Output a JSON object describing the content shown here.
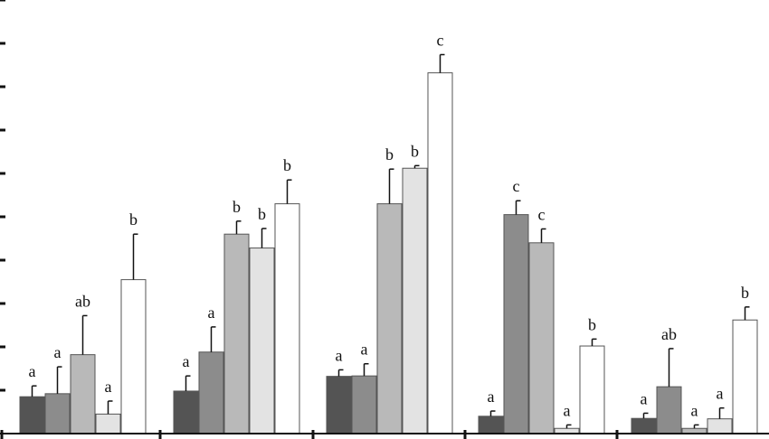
{
  "chart_data": {
    "type": "bar",
    "title": "",
    "xlabel": "",
    "ylabel": "",
    "ylim": [
      0,
      10
    ],
    "grid": false,
    "legend": "none",
    "groups": [
      {
        "bars": [
          {
            "value": 0.85,
            "error": 0.25,
            "letter": "a",
            "color": "#545454"
          },
          {
            "value": 0.92,
            "error": 0.62,
            "letter": "a",
            "color": "#8c8c8c"
          },
          {
            "value": 1.82,
            "error": 0.9,
            "letter": "ab",
            "color": "#b9b9b9"
          },
          {
            "value": 0.45,
            "error": 0.3,
            "letter": "a",
            "color": "#e3e3e3"
          },
          {
            "value": 3.55,
            "error": 1.05,
            "letter": "b",
            "color": "#ffffff"
          }
        ]
      },
      {
        "bars": [
          {
            "value": 0.98,
            "error": 0.35,
            "letter": "a",
            "color": "#545454"
          },
          {
            "value": 1.88,
            "error": 0.58,
            "letter": "a",
            "color": "#8c8c8c"
          },
          {
            "value": 4.6,
            "error": 0.3,
            "letter": "b",
            "color": "#b9b9b9"
          },
          {
            "value": 4.28,
            "error": 0.45,
            "letter": "b",
            "color": "#e3e3e3"
          },
          {
            "value": 5.3,
            "error": 0.55,
            "letter": "b",
            "color": "#ffffff"
          }
        ]
      },
      {
        "bars": [
          {
            "value": 1.32,
            "error": 0.15,
            "letter": "a",
            "color": "#545454"
          },
          {
            "value": 1.33,
            "error": 0.28,
            "letter": "a",
            "color": "#8c8c8c"
          },
          {
            "value": 5.3,
            "error": 0.8,
            "letter": "b",
            "color": "#b9b9b9"
          },
          {
            "value": 6.12,
            "error": 0.06,
            "letter": "b",
            "color": "#e3e3e3"
          },
          {
            "value": 8.32,
            "error": 0.42,
            "letter": "c",
            "color": "#ffffff"
          }
        ]
      },
      {
        "bars": [
          {
            "value": 0.4,
            "error": 0.12,
            "letter": "a",
            "color": "#545454"
          },
          {
            "value": 5.05,
            "error": 0.32,
            "letter": "c",
            "color": "#8c8c8c"
          },
          {
            "value": 4.4,
            "error": 0.32,
            "letter": "c",
            "color": "#b9b9b9"
          },
          {
            "value": 0.12,
            "error": 0.08,
            "letter": "a",
            "color": "#e3e3e3"
          },
          {
            "value": 2.02,
            "error": 0.16,
            "letter": "b",
            "color": "#ffffff"
          }
        ]
      },
      {
        "bars": [
          {
            "value": 0.35,
            "error": 0.12,
            "letter": "a",
            "color": "#545454"
          },
          {
            "value": 1.08,
            "error": 0.88,
            "letter": "ab",
            "color": "#8c8c8c"
          },
          {
            "value": 0.12,
            "error": 0.08,
            "letter": "a",
            "color": "#b9b9b9"
          },
          {
            "value": 0.34,
            "error": 0.25,
            "letter": "a",
            "color": "#e3e3e3"
          },
          {
            "value": 2.62,
            "error": 0.3,
            "letter": "b",
            "color": "#ffffff"
          }
        ]
      }
    ]
  }
}
